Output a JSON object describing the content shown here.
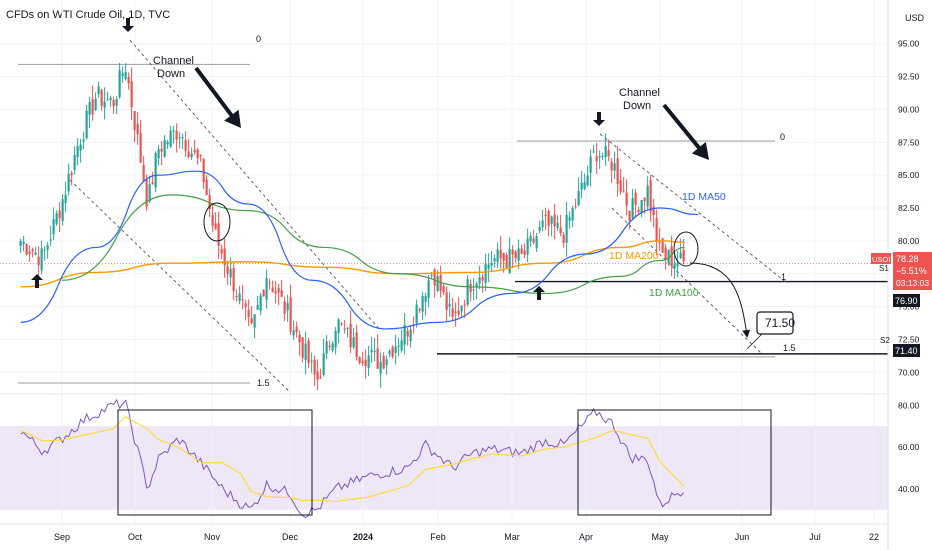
{
  "header": {
    "title": "CFDs on WTI Crude Oil, 1D, TVC"
  },
  "price_axis": {
    "currency": "USD",
    "ticks": [
      "95.00",
      "92.50",
      "90.00",
      "87.50",
      "85.00",
      "82.50",
      "80.00",
      "77.50",
      "75.00",
      "72.50",
      "70.00"
    ],
    "badges": {
      "symbol": "USOIL",
      "price": "78.28",
      "change": "−5.51%",
      "countdown": "03:13:03",
      "support1": "76.90",
      "support2": "71.40"
    }
  },
  "time_axis": {
    "labels": [
      "Sep",
      "Oct",
      "Nov",
      "Dec",
      "2024",
      "Feb",
      "Mar",
      "Apr",
      "May",
      "Jun",
      "Jul",
      "22"
    ]
  },
  "rsi_axis": {
    "ticks": [
      "80.00",
      "60.00",
      "40.00"
    ]
  },
  "annotations": {
    "channel_down_1": "Channel\nDown",
    "channel_down_2": "Channel\nDown",
    "ma50_label": "1D MA50",
    "ma200_label": "1D MA200",
    "ma100_label": "1D MA100",
    "target_box": "71.50",
    "fib_top_left": "0",
    "fib_bottom_left": "1.5",
    "fib_top_right": "0",
    "fib_one_right": "1",
    "fib_bottom_right": "1.5",
    "level_s1": "S1",
    "level_s2": "S2"
  },
  "colors": {
    "up": "#26a69a",
    "down": "#ef5350",
    "ma50": "#2962ff",
    "ma100": "#43a047",
    "ma200": "#ff9800",
    "rsi": "#7e57c2",
    "rsi_ma": "#fdd835",
    "rsi_band": "#ede7f6"
  },
  "chart_data": {
    "type": "candlestick",
    "title": "CFDs on WTI Crude Oil, 1D, TVC",
    "y_unit": "USD",
    "ylim": [
      68.5,
      96.5
    ],
    "x_months": [
      "Sep",
      "Oct",
      "Nov",
      "Dec",
      "2024",
      "Feb",
      "Mar",
      "Apr",
      "May",
      "Jun",
      "Jul"
    ],
    "close_path": [
      [
        "Aug 15",
        80.0
      ],
      [
        "Aug 24",
        78.7
      ],
      [
        "Sep 1",
        83.0
      ],
      [
        "Sep 8",
        87.6
      ],
      [
        "Sep 15",
        91.0
      ],
      [
        "Sep 22",
        90.5
      ],
      [
        "Sep 27",
        93.5
      ],
      [
        "Oct 6",
        82.8
      ],
      [
        "Oct 10",
        87.0
      ],
      [
        "Oct 18",
        88.5
      ],
      [
        "Oct 27",
        85.5
      ],
      [
        "Nov 2",
        80.5
      ],
      [
        "Nov 10",
        76.5
      ],
      [
        "Nov 16",
        72.9
      ],
      [
        "Nov 22",
        77.5
      ],
      [
        "Dec 1",
        74.1
      ],
      [
        "Dec 12",
        69.3
      ],
      [
        "Dec 20",
        73.9
      ],
      [
        "Dec 29",
        71.6
      ],
      [
        "Jan 8",
        70.8
      ],
      [
        "Jan 19",
        73.4
      ],
      [
        "Jan 29",
        77.8
      ],
      [
        "Feb 7",
        73.8
      ],
      [
        "Feb 14",
        76.8
      ],
      [
        "Feb 23",
        78.6
      ],
      [
        "Mar 5",
        78.7
      ],
      [
        "Mar 14",
        81.2
      ],
      [
        "Mar 22",
        80.6
      ],
      [
        "Apr 1",
        84.7
      ],
      [
        "Apr 5",
        86.9
      ],
      [
        "Apr 12",
        85.9
      ],
      [
        "Apr 19",
        82.2
      ],
      [
        "Apr 26",
        83.9
      ],
      [
        "May 1",
        79.0
      ],
      [
        "May 7",
        78.5
      ],
      [
        "May 10",
        78.3
      ]
    ],
    "ma50": [
      [
        "Aug 15",
        73.8
      ],
      [
        "Sep 15",
        79.5
      ],
      [
        "Oct 10",
        85.0
      ],
      [
        "Oct 25",
        85.3
      ],
      [
        "Nov 15",
        82.8
      ],
      [
        "Dec 10",
        77.0
      ],
      [
        "Jan 10",
        73.3
      ],
      [
        "Feb 1",
        73.8
      ],
      [
        "Mar 1",
        76.0
      ],
      [
        "Apr 1",
        79.0
      ],
      [
        "May 1",
        82.5
      ],
      [
        "May 15",
        82.0
      ]
    ],
    "ma100": [
      [
        "Sep 1",
        77.0
      ],
      [
        "Oct 15",
        83.5
      ],
      [
        "Nov 15",
        82.3
      ],
      [
        "Dec 15",
        79.5
      ],
      [
        "Jan 15",
        77.5
      ],
      [
        "Feb 15",
        76.5
      ],
      [
        "Mar 15",
        76.0
      ],
      [
        "Apr 15",
        77.3
      ],
      [
        "May 1",
        78.5
      ],
      [
        "May 10",
        79.5
      ]
    ],
    "ma200": [
      [
        "Aug 15",
        76.5
      ],
      [
        "Sep 15",
        77.6
      ],
      [
        "Oct 15",
        78.3
      ],
      [
        "Nov 15",
        78.4
      ],
      [
        "Dec 15",
        78.0
      ],
      [
        "Jan 15",
        77.5
      ],
      [
        "Feb 15",
        77.6
      ],
      [
        "Mar 15",
        78.3
      ],
      [
        "Apr 15",
        79.5
      ],
      [
        "May 1",
        80.0
      ],
      [
        "May 10",
        79.9
      ]
    ],
    "levels": [
      {
        "name": "S1",
        "value": 76.9
      },
      {
        "name": "S2",
        "value": 71.4
      },
      {
        "name": "target",
        "value": 71.5
      }
    ],
    "rsi": {
      "ylim": [
        27,
        83
      ],
      "band": [
        30,
        70
      ],
      "values": [
        [
          "Aug 15",
          68
        ],
        [
          "Aug 24",
          58
        ],
        [
          "Sep 1",
          64
        ],
        [
          "Sep 10",
          73
        ],
        [
          "Sep 22",
          80
        ],
        [
          "Sep 27",
          81
        ],
        [
          "Oct 6",
          40
        ],
        [
          "Oct 10",
          54
        ],
        [
          "Oct 18",
          64
        ],
        [
          "Oct 27",
          52
        ],
        [
          "Nov 5",
          40
        ],
        [
          "Nov 12",
          33
        ],
        [
          "Nov 16",
          30
        ],
        [
          "Nov 22",
          42
        ],
        [
          "Dec 1",
          38
        ],
        [
          "Dec 6",
          28
        ],
        [
          "Dec 12",
          30
        ],
        [
          "Dec 20",
          40
        ],
        [
          "Jan 3",
          46
        ],
        [
          "Jan 19",
          50
        ],
        [
          "Jan 26",
          61
        ],
        [
          "Feb 7",
          50
        ],
        [
          "Feb 15",
          57
        ],
        [
          "Feb 23",
          59
        ],
        [
          "Mar 5",
          57
        ],
        [
          "Mar 14",
          63
        ],
        [
          "Mar 22",
          61
        ],
        [
          "Apr 5",
          77
        ],
        [
          "Apr 12",
          71
        ],
        [
          "Apr 19",
          55
        ],
        [
          "Apr 26",
          54
        ],
        [
          "May 1",
          32
        ],
        [
          "May 7",
          38
        ],
        [
          "May 10",
          40
        ]
      ]
    }
  }
}
